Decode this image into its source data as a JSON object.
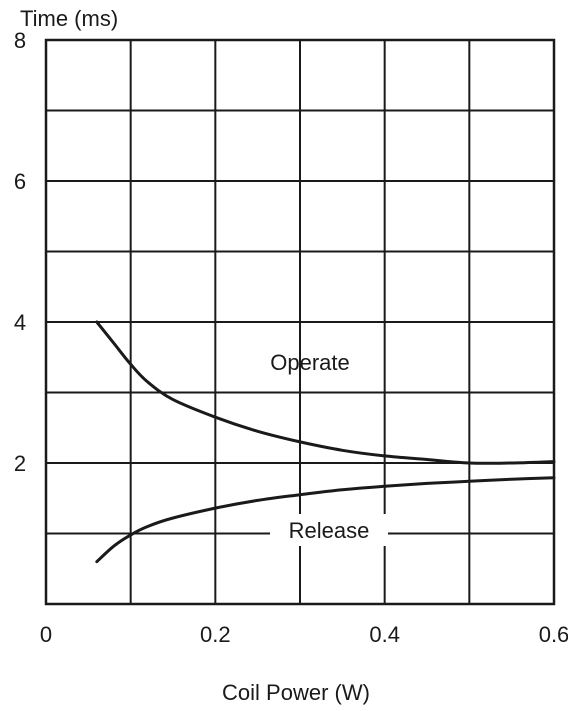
{
  "chart_data": {
    "type": "line",
    "title": "",
    "ylabel": "Time (ms)",
    "xlabel": "Coil Power (W)",
    "xlim": [
      0,
      0.6
    ],
    "ylim": [
      0,
      8
    ],
    "x_ticks": [
      0,
      0.2,
      0.4,
      0.6
    ],
    "x_tick_labels": [
      "0",
      "0.2",
      "0.4",
      "0.6"
    ],
    "y_ticks": [
      2,
      4,
      6,
      8
    ],
    "y_tick_labels": [
      "2",
      "4",
      "6",
      "8"
    ],
    "x_grid": [
      0.1,
      0.2,
      0.3,
      0.4,
      0.5
    ],
    "y_grid": [
      1,
      2,
      3,
      4,
      5,
      6,
      7
    ],
    "grid": true,
    "legend": "none",
    "series": [
      {
        "name": "Operate",
        "x": [
          0.06,
          0.08,
          0.1,
          0.12,
          0.15,
          0.2,
          0.25,
          0.3,
          0.35,
          0.4,
          0.45,
          0.5,
          0.55,
          0.6
        ],
        "y": [
          4.0,
          3.7,
          3.4,
          3.15,
          2.9,
          2.65,
          2.45,
          2.3,
          2.18,
          2.1,
          2.05,
          2.0,
          2.0,
          2.02
        ]
      },
      {
        "name": "Release",
        "x": [
          0.06,
          0.08,
          0.1,
          0.12,
          0.15,
          0.2,
          0.25,
          0.3,
          0.35,
          0.4,
          0.45,
          0.5,
          0.55,
          0.6
        ],
        "y": [
          0.6,
          0.82,
          0.98,
          1.1,
          1.22,
          1.36,
          1.47,
          1.55,
          1.62,
          1.67,
          1.71,
          1.74,
          1.77,
          1.79
        ]
      }
    ]
  }
}
